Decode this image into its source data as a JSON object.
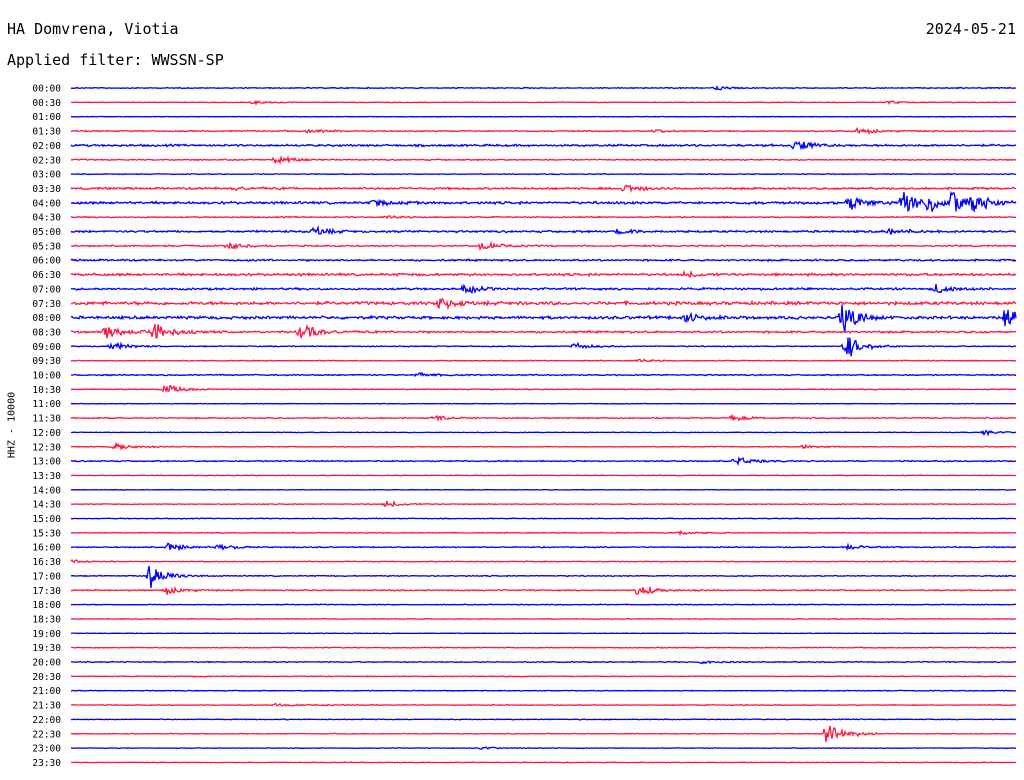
{
  "header": {
    "station": "HA Domvrena, Viotia",
    "date": "2024-05-21",
    "filter": "Applied filter: WWSSN-SP"
  },
  "y_axis_label": "HHZ - 10000",
  "colors": {
    "odd_trace": "#0000ff",
    "even_trace": "#ff1744",
    "text": "#000000"
  },
  "chart_data": {
    "type": "line",
    "description_kind": "helicorder",
    "row_labels": [
      "00:00",
      "00:30",
      "01:00",
      "01:30",
      "02:00",
      "02:30",
      "03:00",
      "03:30",
      "04:00",
      "04:30",
      "05:00",
      "05:30",
      "06:00",
      "06:30",
      "07:00",
      "07:30",
      "08:00",
      "08:30",
      "09:00",
      "09:30",
      "10:00",
      "10:30",
      "11:00",
      "11:30",
      "12:00",
      "12:30",
      "13:00",
      "13:30",
      "14:00",
      "14:30",
      "15:00",
      "15:30",
      "16:00",
      "16:30",
      "17:00",
      "17:30",
      "18:00",
      "18:30",
      "19:00",
      "19:30",
      "20:00",
      "20:30",
      "21:00",
      "21:30",
      "22:00",
      "22:30",
      "23:00",
      "23:30"
    ],
    "row_duration_minutes": 30,
    "noise_level": [
      0.5,
      0.3,
      0.3,
      0.6,
      1.0,
      0.6,
      0.4,
      1.0,
      1.2,
      0.6,
      1.0,
      0.7,
      0.9,
      1.2,
      1.0,
      1.6,
      1.4,
      1.0,
      0.5,
      0.4,
      0.6,
      0.4,
      0.3,
      0.6,
      0.3,
      0.4,
      0.6,
      0.3,
      0.3,
      0.4,
      0.4,
      0.4,
      0.5,
      0.4,
      0.5,
      0.6,
      0.4,
      0.4,
      0.3,
      0.4,
      0.5,
      0.4,
      0.4,
      0.4,
      0.4,
      0.4,
      0.3,
      0.3
    ],
    "events": [
      {
        "row": 0,
        "minute": 20.5,
        "amplitude": 2
      },
      {
        "row": 1,
        "minute": 5.8,
        "amplitude": 2
      },
      {
        "row": 1,
        "minute": 26.0,
        "amplitude": 2
      },
      {
        "row": 3,
        "minute": 7.5,
        "amplitude": 2
      },
      {
        "row": 3,
        "minute": 18.5,
        "amplitude": 2
      },
      {
        "row": 3,
        "minute": 25.0,
        "amplitude": 4
      },
      {
        "row": 4,
        "minute": 23.0,
        "amplitude": 7
      },
      {
        "row": 5,
        "minute": 6.5,
        "amplitude": 6
      },
      {
        "row": 7,
        "minute": 17.5,
        "amplitude": 6
      },
      {
        "row": 7,
        "minute": 5.2,
        "amplitude": 2
      },
      {
        "row": 8,
        "minute": 24.7,
        "amplitude": 9
      },
      {
        "row": 8,
        "minute": 26.4,
        "amplitude": 16
      },
      {
        "row": 8,
        "minute": 27.2,
        "amplitude": 8
      },
      {
        "row": 8,
        "minute": 28.0,
        "amplitude": 17
      },
      {
        "row": 8,
        "minute": 28.6,
        "amplitude": 9
      },
      {
        "row": 8,
        "minute": 9.6,
        "amplitude": 3
      },
      {
        "row": 9,
        "minute": 10.0,
        "amplitude": 2
      },
      {
        "row": 10,
        "minute": 7.7,
        "amplitude": 5
      },
      {
        "row": 10,
        "minute": 17.4,
        "amplitude": 3
      },
      {
        "row": 10,
        "minute": 26.0,
        "amplitude": 4
      },
      {
        "row": 11,
        "minute": 5.0,
        "amplitude": 4
      },
      {
        "row": 11,
        "minute": 13.0,
        "amplitude": 5
      },
      {
        "row": 13,
        "minute": 19.5,
        "amplitude": 3
      },
      {
        "row": 14,
        "minute": 12.5,
        "amplitude": 5
      },
      {
        "row": 14,
        "minute": 27.5,
        "amplitude": 6
      },
      {
        "row": 15,
        "minute": 11.7,
        "amplitude": 7
      },
      {
        "row": 16,
        "minute": 24.5,
        "amplitude": 18
      },
      {
        "row": 16,
        "minute": 29.7,
        "amplitude": 14
      },
      {
        "row": 16,
        "minute": 19.5,
        "amplitude": 5
      },
      {
        "row": 17,
        "minute": 1.1,
        "amplitude": 9
      },
      {
        "row": 17,
        "minute": 2.6,
        "amplitude": 12
      },
      {
        "row": 17,
        "minute": 7.3,
        "amplitude": 10
      },
      {
        "row": 18,
        "minute": 1.3,
        "amplitude": 5
      },
      {
        "row": 18,
        "minute": 24.6,
        "amplitude": 14
      },
      {
        "row": 18,
        "minute": 16.0,
        "amplitude": 4
      },
      {
        "row": 19,
        "minute": 18.0,
        "amplitude": 2
      },
      {
        "row": 20,
        "minute": 11.0,
        "amplitude": 3
      },
      {
        "row": 21,
        "minute": 3.0,
        "amplitude": 6
      },
      {
        "row": 23,
        "minute": 11.5,
        "amplitude": 3
      },
      {
        "row": 23,
        "minute": 21.0,
        "amplitude": 3
      },
      {
        "row": 24,
        "minute": 29.0,
        "amplitude": 3
      },
      {
        "row": 25,
        "minute": 1.4,
        "amplitude": 5
      },
      {
        "row": 25,
        "minute": 23.2,
        "amplitude": 2
      },
      {
        "row": 26,
        "minute": 21.1,
        "amplitude": 5
      },
      {
        "row": 29,
        "minute": 10.0,
        "amplitude": 4
      },
      {
        "row": 31,
        "minute": 19.3,
        "amplitude": 3
      },
      {
        "row": 32,
        "minute": 3.1,
        "amplitude": 5
      },
      {
        "row": 32,
        "minute": 4.7,
        "amplitude": 4
      },
      {
        "row": 32,
        "minute": 24.6,
        "amplitude": 3
      },
      {
        "row": 33,
        "minute": 0.0,
        "amplitude": 2
      },
      {
        "row": 34,
        "minute": 2.5,
        "amplitude": 14
      },
      {
        "row": 35,
        "minute": 3.0,
        "amplitude": 5
      },
      {
        "row": 35,
        "minute": 18.0,
        "amplitude": 7
      },
      {
        "row": 40,
        "minute": 20.0,
        "amplitude": 2
      },
      {
        "row": 43,
        "minute": 6.5,
        "amplitude": 2
      },
      {
        "row": 45,
        "minute": 24.0,
        "amplitude": 16
      },
      {
        "row": 46,
        "minute": 13.0,
        "amplitude": 2
      }
    ]
  }
}
